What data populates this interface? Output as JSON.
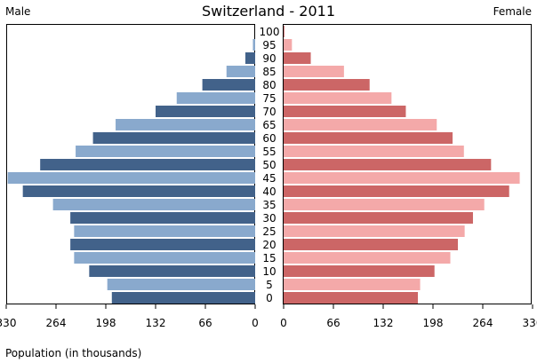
{
  "chart_data": {
    "type": "bar",
    "title": "Switzerland - 2011",
    "left_label": "Male",
    "right_label": "Female",
    "xlabel": "Population (in thousands)",
    "age_groups": [
      "0",
      "5",
      "10",
      "15",
      "20",
      "25",
      "30",
      "35",
      "40",
      "45",
      "50",
      "55",
      "60",
      "65",
      "70",
      "75",
      "80",
      "85",
      "90",
      "95",
      "100"
    ],
    "male_ticks": [
      "330",
      "264",
      "198",
      "132",
      "66",
      "0"
    ],
    "female_ticks": [
      "0",
      "66",
      "132",
      "198",
      "264",
      "330"
    ],
    "xlim": [
      0,
      330
    ],
    "series": [
      {
        "name": "Male",
        "values": [
          190,
          196,
          220,
          240,
          245,
          240,
          245,
          268,
          308,
          328,
          285,
          238,
          215,
          185,
          132,
          104,
          70,
          38,
          13,
          3,
          0
        ],
        "colors": [
          "#42628a",
          "#89a9cd"
        ]
      },
      {
        "name": "Female",
        "values": [
          178,
          181,
          200,
          221,
          231,
          240,
          251,
          266,
          299,
          313,
          275,
          239,
          224,
          203,
          162,
          143,
          114,
          80,
          36,
          11,
          1
        ],
        "colors": [
          "#cc6666",
          "#f4a9a9"
        ]
      }
    ]
  }
}
